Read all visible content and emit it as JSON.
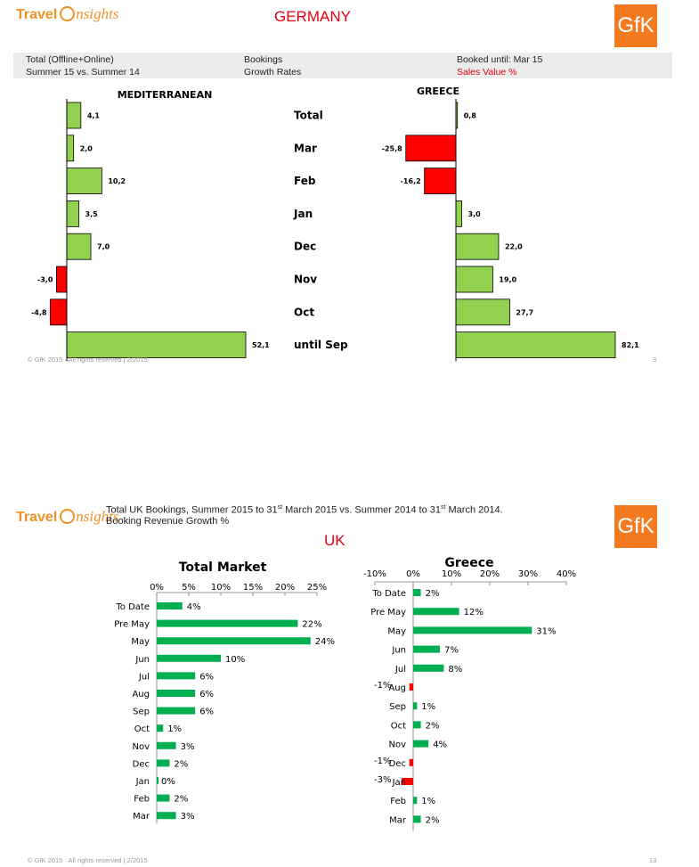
{
  "slide1": {
    "logo": {
      "travel": "Travel",
      "insights": "nsights"
    },
    "country": "GERMANY",
    "gfk": "GfK",
    "info": {
      "r1c1": "Total (Offline+Online)",
      "r1c2": "Bookings",
      "r1c3": "Booked until: Mar 15",
      "r2c1": "Summer 15 vs. Summer 14",
      "r2c2": "Growth Rates",
      "r2c3": "Sales Value %"
    },
    "footer_left": "© GfK 2015 · All rights reserved | 2/2015",
    "footer_right": "3"
  },
  "slide2": {
    "logo": {
      "travel": "Travel",
      "insights": "nsights"
    },
    "title_line1_a": "Total UK Bookings, Summer 2015 to 31",
    "title_sup1": "st",
    "title_line1_b": " March 2015 vs. Summer 2014 to 31",
    "title_sup2": "st",
    "title_line1_c": " March 2014.",
    "title_line2": "Booking Revenue Growth %",
    "country": "UK",
    "gfk": "GfK",
    "footer_left": "© GfK 2015 · All rights reserved | 2/2015",
    "footer_right": "13"
  },
  "colors": {
    "positive": "#92d050",
    "negative": "#ff0000",
    "uk_positive": "#00b050",
    "uk_negative": "#ff0000",
    "accent": "#e3000f",
    "brand": "#f47a20"
  },
  "chart_data": [
    {
      "type": "bar",
      "title": "MEDITERRANEAN",
      "orientation": "horizontal",
      "categories": [
        "Total",
        "Mar",
        "Feb",
        "Jan",
        "Dec",
        "Nov",
        "Oct",
        "until Sep"
      ],
      "values": [
        4.1,
        2.0,
        10.2,
        3.5,
        7.0,
        -3.0,
        -4.8,
        52.1
      ],
      "labels": [
        "4,1",
        "2,0",
        "10,2",
        "3,5",
        "7,0",
        "-3,0",
        "-4,8",
        "52,1"
      ]
    },
    {
      "type": "bar",
      "title": "GREECE",
      "orientation": "horizontal",
      "categories": [
        "Total",
        "Mar",
        "Feb",
        "Jan",
        "Dec",
        "Nov",
        "Oct",
        "until Sep"
      ],
      "values": [
        0.8,
        -25.8,
        -16.2,
        3.0,
        22.0,
        19.0,
        27.7,
        82.1
      ],
      "labels": [
        "0,8",
        "-25,8",
        "-16,2",
        "3,0",
        "22,0",
        "19,0",
        "27,7",
        "82,1"
      ]
    },
    {
      "type": "bar",
      "title": "Total Market",
      "orientation": "horizontal",
      "categories": [
        "To Date",
        "Pre May",
        "May",
        "Jun",
        "Jul",
        "Aug",
        "Sep",
        "Oct",
        "Nov",
        "Dec",
        "Jan",
        "Feb",
        "Mar"
      ],
      "values": [
        4,
        22,
        24,
        10,
        6,
        6,
        6,
        1,
        3,
        2,
        0,
        2,
        3
      ],
      "labels": [
        "4%",
        "22%",
        "24%",
        "10%",
        "6%",
        "6%",
        "6%",
        "1%",
        "3%",
        "2%",
        "0%",
        "2%",
        "3%"
      ],
      "xlim": [
        0,
        25
      ],
      "xticks": [
        "0%",
        "5%",
        "10%",
        "15%",
        "20%",
        "25%"
      ]
    },
    {
      "type": "bar",
      "title": "Greece",
      "orientation": "horizontal",
      "categories": [
        "To Date",
        "Pre May",
        "May",
        "Jun",
        "Jul",
        "Aug",
        "Sep",
        "Oct",
        "Nov",
        "Dec",
        "Jan",
        "Feb",
        "Mar"
      ],
      "values": [
        2,
        12,
        31,
        7,
        8,
        -1,
        1,
        2,
        4,
        -1,
        -3,
        1,
        2
      ],
      "labels": [
        "2%",
        "12%",
        "31%",
        "7%",
        "8%",
        "-1%",
        "1%",
        "2%",
        "4%",
        "-1%",
        "-3%",
        "1%",
        "2%"
      ],
      "xlim": [
        -10,
        40
      ],
      "xticks": [
        "-10%",
        "0%",
        "10%",
        "20%",
        "30%",
        "40%"
      ]
    }
  ]
}
